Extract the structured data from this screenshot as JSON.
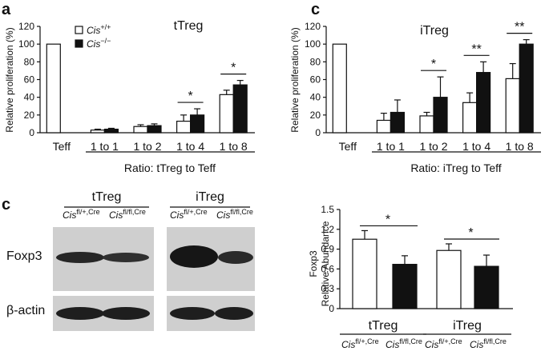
{
  "panel_labels": {
    "a": "a",
    "c_top": "c",
    "c_bottom": "c"
  },
  "chart_data": [
    {
      "type": "bar",
      "title": "tTreg",
      "ylabel": "Relative proliferation (%)",
      "xlabel": "Ratio: tTreg to Teff",
      "ylim": [
        0,
        120
      ],
      "yticks": [
        "0",
        "20",
        "40",
        "60",
        "80",
        "100",
        "120"
      ],
      "categories": [
        "Teff",
        "1 to 1",
        "1 to 2",
        "1 to 4",
        "1 to 8"
      ],
      "legend": {
        "wt": "Cis+/+",
        "ko": "Cis−/−"
      },
      "series": [
        {
          "name": "Cis+/+",
          "color": "#ffffff",
          "values": [
            100,
            3,
            7,
            13,
            43
          ],
          "errors": [
            0,
            1,
            2,
            7,
            5
          ]
        },
        {
          "name": "Cis−/−",
          "color": "#111111",
          "values": [
            null,
            4,
            8,
            20,
            54
          ],
          "errors": [
            0,
            1,
            2,
            7,
            5
          ]
        }
      ],
      "significance": [
        {
          "category": 3,
          "label": "*"
        },
        {
          "category": 4,
          "label": "*"
        }
      ]
    },
    {
      "type": "bar",
      "title": "iTreg",
      "ylabel": "Relative proliferation (%)",
      "xlabel": "Ratio: iTreg to Teff",
      "ylim": [
        0,
        120
      ],
      "yticks": [
        "0",
        "20",
        "40",
        "60",
        "80",
        "100",
        "120"
      ],
      "categories": [
        "Teff",
        "1 to 1",
        "1 to 2",
        "1 to 4",
        "1 to 8"
      ],
      "series": [
        {
          "name": "Cis+/+",
          "color": "#ffffff",
          "values": [
            100,
            14,
            19,
            34,
            61
          ],
          "errors": [
            0,
            8,
            4,
            11,
            17
          ]
        },
        {
          "name": "Cis−/−",
          "color": "#111111",
          "values": [
            null,
            23,
            40,
            68,
            100
          ],
          "errors": [
            0,
            14,
            23,
            12,
            5
          ]
        }
      ],
      "significance": [
        {
          "category": 2,
          "label": "*"
        },
        {
          "category": 3,
          "label": "**"
        },
        {
          "category": 4,
          "label": "**"
        }
      ]
    },
    {
      "type": "bar",
      "ylabel_line1": "Foxp3",
      "ylabel_line2": "Relative Abundance",
      "ylim": [
        0,
        1.5
      ],
      "yticks": [
        "0",
        "0.3",
        "0.6",
        "0.9",
        "1.2",
        "1.5"
      ],
      "groups": [
        "tTreg",
        "iTreg"
      ],
      "categories": [
        "Cisfl/+,Cre",
        "Cisfl/fl,Cre",
        "Cisfl/+,Cre",
        "Cisfl/fl,Cre"
      ],
      "values": [
        1.05,
        0.67,
        0.88,
        0.64
      ],
      "errors": [
        0.13,
        0.13,
        0.1,
        0.17
      ],
      "colors": [
        "#ffffff",
        "#111111",
        "#ffffff",
        "#111111"
      ],
      "significance": [
        {
          "group": 0,
          "label": "*"
        },
        {
          "group": 1,
          "label": "*"
        }
      ]
    }
  ],
  "western_blot": {
    "groups": [
      "tTreg",
      "iTreg"
    ],
    "genotypes": [
      {
        "base": "Cis",
        "sup": "fl/+,Cre"
      },
      {
        "base": "Cis",
        "sup": "fl/fl,Cre"
      }
    ],
    "rows": [
      "Foxp3",
      "β-actin"
    ]
  }
}
